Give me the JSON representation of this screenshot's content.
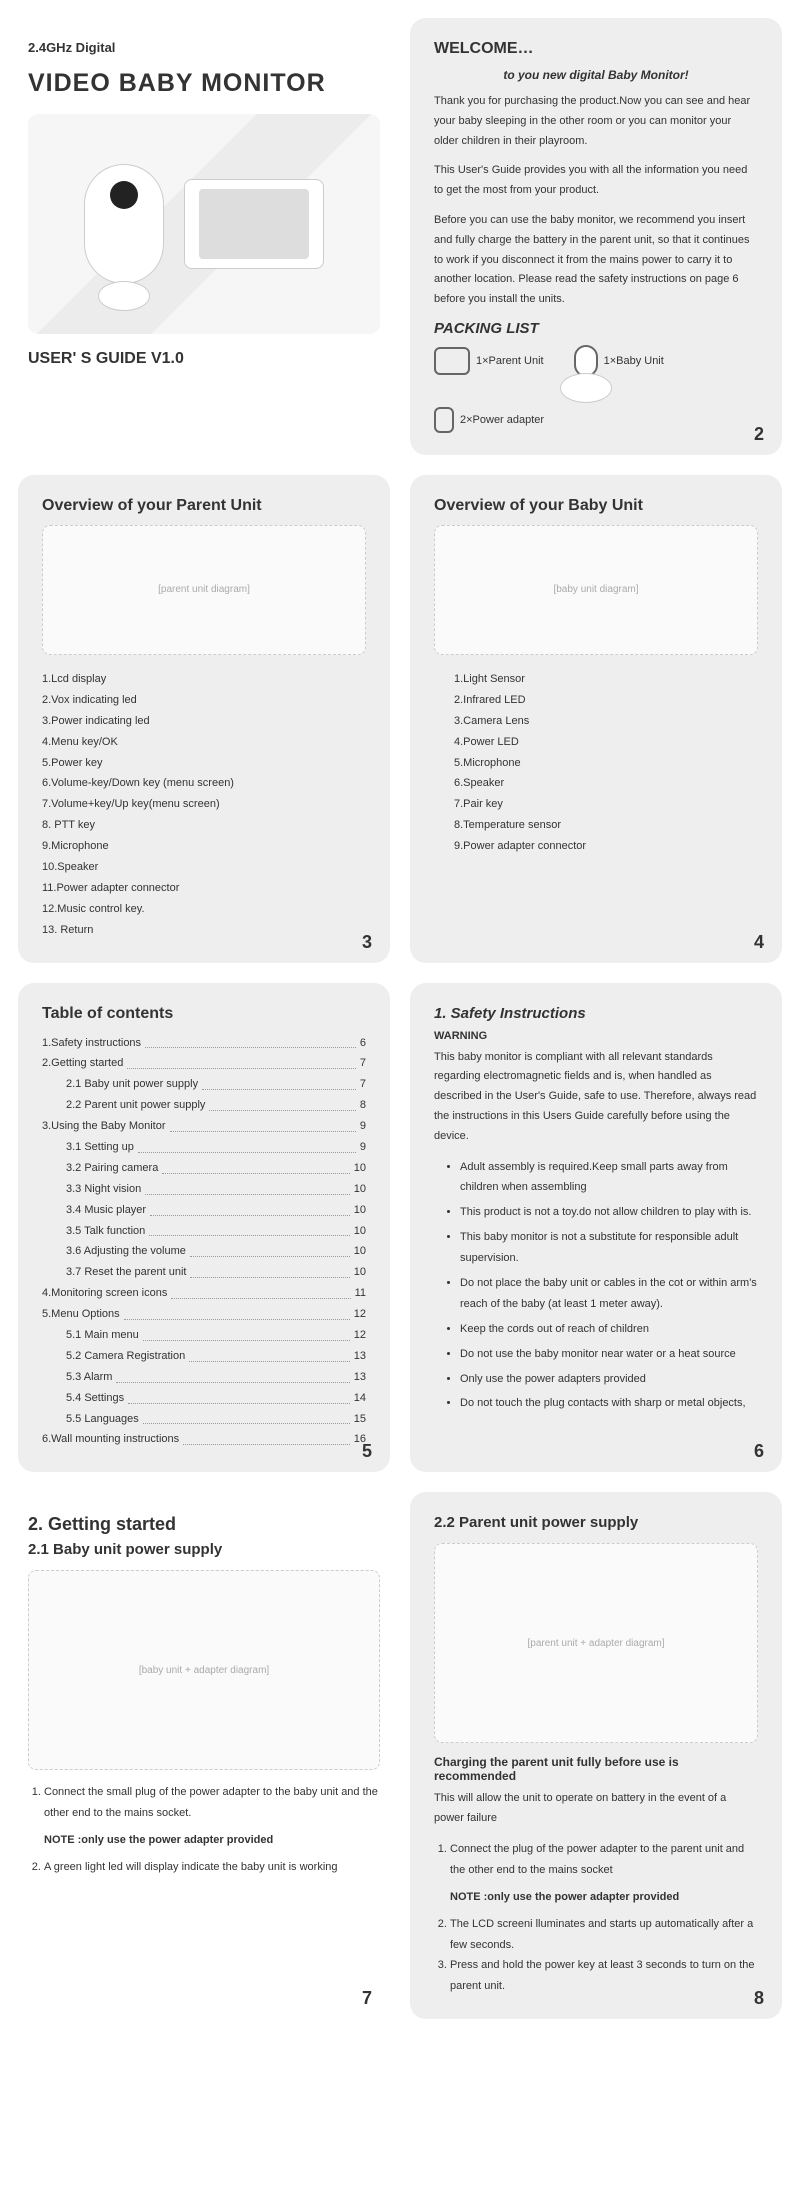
{
  "colors": {
    "bg": "#eeeeee",
    "text": "#333333",
    "page_bg": "#ffffff"
  },
  "pg1": {
    "sub": "2.4GHz Digital",
    "title": "VIDEO BABY MONITOR",
    "guide": "USER' S GUIDE V1.0"
  },
  "pg2": {
    "welcome": "WELCOME…",
    "tag": "to you new digital Baby Monitor!",
    "p1": "Thank you for purchasing the product.Now you can see and hear your baby sleeping in the other room or you can monitor your older children in their playroom.",
    "p2": "This User's Guide provides you with all the information you need to get the most from your product.",
    "p3": "Before you can use the baby monitor, we recommend you insert and fully charge the battery in the parent unit, so that it continues to work if you disconnect it from the mains power to carry it to another location. Please read the safety instructions on page 6 before you install the units.",
    "packing_title": "PACKING LIST",
    "items": [
      "1×Parent Unit",
      "1×Baby Unit",
      "2×Power adapter"
    ],
    "num": "2"
  },
  "pg3": {
    "title": "Overview of your Parent Unit",
    "list": [
      "1.Lcd display",
      "2.Vox indicating led",
      "3.Power indicating led",
      "4.Menu key/OK",
      "5.Power key",
      "6.Volume-key/Down key (menu screen)",
      "7.Volume+key/Up key(menu screen)",
      "8. PTT key",
      "9.Microphone",
      "10.Speaker",
      "11.Power adapter connector",
      "12.Music control key.",
      "13. Return"
    ],
    "num": "3"
  },
  "pg4": {
    "title": "Overview of your Baby Unit",
    "list": [
      "1.Light Sensor",
      "2.Infrared LED",
      "3.Camera Lens",
      "4.Power LED",
      "5.Microphone",
      "6.Speaker",
      "7.Pair key",
      "8.Temperature sensor",
      "9.Power adapter connector"
    ],
    "num": "4"
  },
  "pg5": {
    "title": "Table of contents",
    "toc": [
      {
        "l": "1.Safety instructions",
        "p": "6",
        "s": 0
      },
      {
        "l": "2.Getting started",
        "p": "7",
        "s": 0
      },
      {
        "l": "2.1 Baby unit power supply",
        "p": "7",
        "s": 1
      },
      {
        "l": "2.2 Parent unit power supply",
        "p": "8",
        "s": 1
      },
      {
        "l": "3.Using the Baby Monitor",
        "p": "9",
        "s": 0
      },
      {
        "l": "3.1 Setting up",
        "p": "9",
        "s": 1
      },
      {
        "l": "3.2 Pairing camera",
        "p": "10",
        "s": 1
      },
      {
        "l": "3.3 Night vision",
        "p": "10",
        "s": 1
      },
      {
        "l": "3.4 Music player",
        "p": "10",
        "s": 1
      },
      {
        "l": "3.5 Talk function",
        "p": "10",
        "s": 1
      },
      {
        "l": "3.6 Adjusting the volume",
        "p": "10",
        "s": 1
      },
      {
        "l": "3.7 Reset the parent unit",
        "p": "10",
        "s": 1
      },
      {
        "l": "4.Monitoring screen icons",
        "p": "11",
        "s": 0
      },
      {
        "l": "5.Menu Options",
        "p": "12",
        "s": 0
      },
      {
        "l": "5.1 Main menu",
        "p": "12",
        "s": 1
      },
      {
        "l": "5.2 Camera Registration",
        "p": "13",
        "s": 1
      },
      {
        "l": "5.3 Alarm",
        "p": "13",
        "s": 1
      },
      {
        "l": "5.4 Settings",
        "p": "14",
        "s": 1
      },
      {
        "l": "5.5 Languages",
        "p": "15",
        "s": 1
      },
      {
        "l": "6.Wall mounting instructions",
        "p": "16",
        "s": 0
      }
    ],
    "num": "5"
  },
  "pg6": {
    "title": "1. Safety Instructions",
    "warn": "WARNING",
    "intro": "This baby monitor is compliant with all relevant standards regarding electromagnetic fields and is, when handled as described in the User's Guide, safe to use. Therefore, always read the instructions in this Users Guide carefully before using the device.",
    "bullets": [
      "Adult assembly is required.Keep small parts away from children when assembling",
      "This product is not a toy.do not allow children to play with is.",
      "This baby monitor is not a substitute for responsible adult  supervision.",
      "Do not place the baby unit or cables in the cot or within arm's reach of the baby (at least 1 meter away).",
      "Keep the cords out of reach of children",
      "Do not use the baby monitor near  water  or  a  heat source",
      "Only use the power adapters provided",
      "Do not touch the plug contacts with sharp or metal objects,"
    ],
    "num": "6"
  },
  "pg7": {
    "h": "2. Getting started",
    "sub": "2.1 Baby unit power supply",
    "step1": "Connect the small plug of the power adapter to the baby unit and the other end to  the mains socket.",
    "note": "NOTE :only use the power adapter provided",
    "step2": "A green light led will display  indicate  the baby unit is working",
    "num": "7"
  },
  "pg8": {
    "sub": "2.2 Parent unit power supply",
    "h2": "Charging the parent unit  fully before use is recommended",
    "p": "This will allow the unit to operate on battery in the event of a power failure",
    "s1": "Connect the plug of the power adapter to the parent unit and the other end to the mains socket",
    "note": "NOTE :only use the power adapter provided",
    "s2": "The LCD screeni lluminates and starts up automatically after a few seconds.",
    "s3": "Press and hold the power key at least 3 seconds to turn on the parent unit.",
    "num": "8"
  }
}
